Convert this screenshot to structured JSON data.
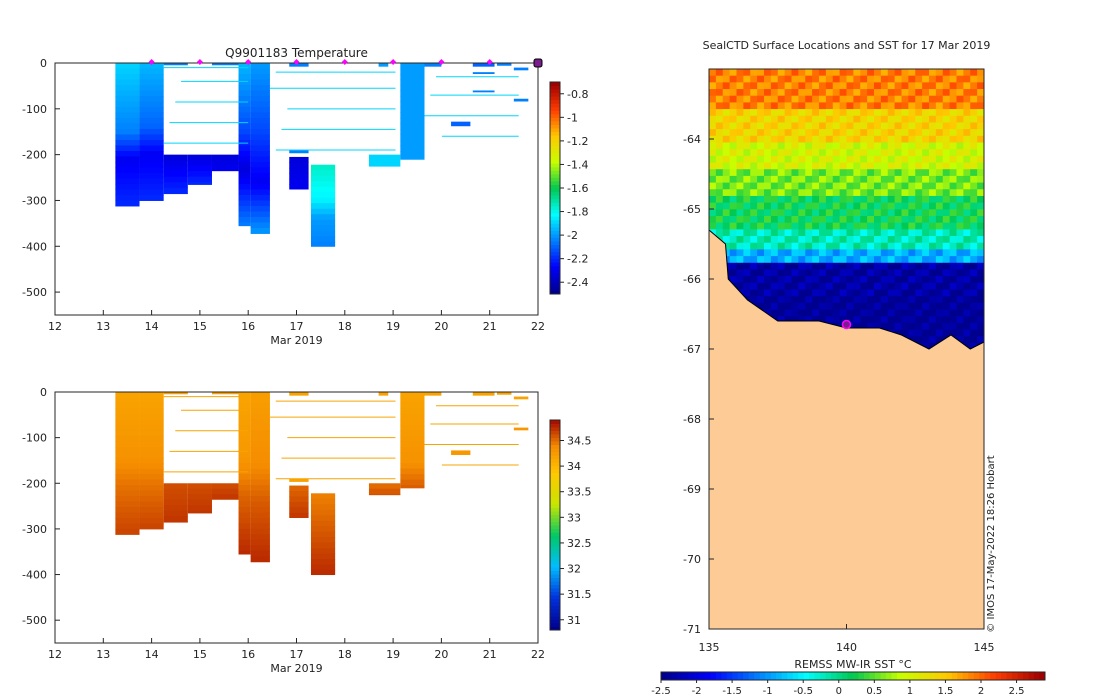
{
  "colors": {
    "temp_low": "#00008f",
    "temp_high": "#9f0000",
    "land": "#fccb96",
    "marker": "#ff00ff",
    "marker_profile": "#7a1d8c"
  },
  "chart_data": [
    {
      "type": "heatmap",
      "id": "temperature-section",
      "title": "Q9901183  Temperature",
      "xlabel": "Mar 2019",
      "ylabel": "",
      "xlim": [
        12,
        22
      ],
      "ylim": [
        -550,
        0
      ],
      "xticks": [
        12,
        13,
        14,
        15,
        16,
        17,
        18,
        19,
        20,
        21,
        22
      ],
      "yticks": [
        0,
        -100,
        -200,
        -300,
        -400,
        -500
      ],
      "colorbar": {
        "ticks": [
          -0.8,
          -1,
          -1.2,
          -1.4,
          -1.6,
          -1.8,
          -2,
          -2.2,
          -2.4
        ],
        "range": [
          -2.5,
          -0.7
        ]
      },
      "surface_markers": [
        14,
        15,
        16,
        17,
        18,
        19,
        20,
        21
      ],
      "last_profile_marker": 22,
      "profiles": [
        {
          "x0": 13.25,
          "x1": 13.75,
          "zmax": 312,
          "grad": [
            [
              0,
              -1.9
            ],
            [
              150,
              -2.05
            ],
            [
              210,
              -2.3
            ],
            [
              312,
              -2.2
            ]
          ]
        },
        {
          "x0": 13.75,
          "x1": 14.25,
          "zmax": 300,
          "grad": [
            [
              0,
              -1.95
            ],
            [
              140,
              -2.1
            ],
            [
              200,
              -2.3
            ],
            [
              300,
              -2.2
            ]
          ]
        },
        {
          "x0": 14.25,
          "x1": 14.75,
          "zmax": 285,
          "grad": [
            [
              200,
              -2.35
            ],
            [
              285,
              -2.2
            ]
          ]
        },
        {
          "x0": 14.75,
          "x1": 15.25,
          "zmax": 265,
          "grad": [
            [
              200,
              -2.35
            ],
            [
              265,
              -2.2
            ]
          ]
        },
        {
          "x0": 15.25,
          "x1": 15.8,
          "zmax": 235,
          "grad": [
            [
              200,
              -2.35
            ],
            [
              235,
              -2.3
            ]
          ]
        },
        {
          "x0": 15.8,
          "x1": 16.05,
          "zmax": 355,
          "grad": [
            [
              0,
              -1.95
            ],
            [
              150,
              -2.15
            ],
            [
              230,
              -2.35
            ],
            [
              355,
              -2.05
            ]
          ]
        },
        {
          "x0": 16.05,
          "x1": 16.45,
          "zmax": 372,
          "grad": [
            [
              0,
              -2.0
            ],
            [
              150,
              -2.15
            ],
            [
              260,
              -2.3
            ],
            [
              372,
              -2.0
            ]
          ]
        },
        {
          "x0": 16.85,
          "x1": 17.25,
          "zmax": 275,
          "grad": [
            [
              205,
              -2.35
            ],
            [
              275,
              -2.3
            ]
          ]
        },
        {
          "x0": 17.3,
          "x1": 17.8,
          "zmax": 400,
          "grad": [
            [
              222,
              -1.75
            ],
            [
              300,
              -1.85
            ],
            [
              340,
              -2.0
            ],
            [
              400,
              -2.05
            ]
          ]
        },
        {
          "x0": 18.5,
          "x1": 19.15,
          "zmax": 225,
          "grad": [
            [
              200,
              -1.9
            ],
            [
              225,
              -1.9
            ]
          ]
        },
        {
          "x0": 19.15,
          "x1": 19.65,
          "zmax": 210,
          "grad": [
            [
              0,
              -2.0
            ],
            [
              210,
              -2.0
            ]
          ]
        }
      ],
      "segments": [
        {
          "x0": 14.25,
          "x1": 14.75,
          "z0": 0,
          "z1": 5,
          "v": -2.05
        },
        {
          "x0": 15.25,
          "x1": 15.8,
          "z0": 0,
          "z1": 5,
          "v": -2.05
        },
        {
          "x0": 16.85,
          "x1": 17.25,
          "z0": 0,
          "z1": 8,
          "v": -2.05
        },
        {
          "x0": 16.85,
          "x1": 17.25,
          "z0": 190,
          "z1": 197,
          "v": -2.05
        },
        {
          "x0": 18.7,
          "x1": 18.9,
          "z0": 0,
          "z1": 8,
          "v": -2.0
        },
        {
          "x0": 19.65,
          "x1": 20.0,
          "z0": 0,
          "z1": 8,
          "v": -2.05
        },
        {
          "x0": 20.2,
          "x1": 20.6,
          "z0": 128,
          "z1": 138,
          "v": -2.1
        },
        {
          "x0": 20.65,
          "x1": 21.1,
          "z0": 0,
          "z1": 8,
          "v": -2.1
        },
        {
          "x0": 20.65,
          "x1": 21.1,
          "z0": 20,
          "z1": 24,
          "v": -2.05
        },
        {
          "x0": 20.65,
          "x1": 21.1,
          "z0": 60,
          "z1": 64,
          "v": -2.05
        },
        {
          "x0": 21.15,
          "x1": 21.45,
          "z0": 0,
          "z1": 6,
          "v": -2.05
        },
        {
          "x0": 21.5,
          "x1": 21.8,
          "z0": 10,
          "z1": 16,
          "v": -2.05
        },
        {
          "x0": 21.5,
          "x1": 21.8,
          "z0": 78,
          "z1": 84,
          "v": -2.05
        }
      ]
    },
    {
      "type": "heatmap",
      "id": "salinity-section",
      "title": "",
      "xlabel": "Mar 2019",
      "ylabel": "",
      "xlim": [
        12,
        22
      ],
      "ylim": [
        -550,
        0
      ],
      "xticks": [
        12,
        13,
        14,
        15,
        16,
        17,
        18,
        19,
        20,
        21,
        22
      ],
      "yticks": [
        0,
        -100,
        -200,
        -300,
        -400,
        -500
      ],
      "colorbar": {
        "ticks": [
          34.5,
          34,
          33.5,
          33,
          32.5,
          32,
          31.5,
          31
        ],
        "range": [
          30.8,
          34.9
        ]
      },
      "profiles": [
        {
          "x0": 13.25,
          "x1": 13.75,
          "zmax": 312,
          "grad": [
            [
              0,
              34.2
            ],
            [
              140,
              34.35
            ],
            [
              200,
              34.5
            ],
            [
              312,
              34.7
            ]
          ]
        },
        {
          "x0": 13.75,
          "x1": 14.25,
          "zmax": 300,
          "grad": [
            [
              0,
              34.2
            ],
            [
              140,
              34.35
            ],
            [
              200,
              34.5
            ],
            [
              300,
              34.7
            ]
          ]
        },
        {
          "x0": 14.25,
          "x1": 14.75,
          "zmax": 285,
          "grad": [
            [
              200,
              34.65
            ],
            [
              285,
              34.75
            ]
          ]
        },
        {
          "x0": 14.75,
          "x1": 15.25,
          "zmax": 265,
          "grad": [
            [
              200,
              34.65
            ],
            [
              265,
              34.75
            ]
          ]
        },
        {
          "x0": 15.25,
          "x1": 15.8,
          "zmax": 235,
          "grad": [
            [
              200,
              34.65
            ],
            [
              235,
              34.75
            ]
          ]
        },
        {
          "x0": 15.8,
          "x1": 16.05,
          "zmax": 355,
          "grad": [
            [
              0,
              34.2
            ],
            [
              140,
              34.3
            ],
            [
              220,
              34.55
            ],
            [
              355,
              34.8
            ]
          ]
        },
        {
          "x0": 16.05,
          "x1": 16.45,
          "zmax": 372,
          "grad": [
            [
              0,
              34.25
            ],
            [
              160,
              34.4
            ],
            [
              240,
              34.6
            ],
            [
              372,
              34.8
            ]
          ]
        },
        {
          "x0": 16.85,
          "x1": 17.25,
          "zmax": 275,
          "grad": [
            [
              205,
              34.55
            ],
            [
              275,
              34.75
            ]
          ]
        },
        {
          "x0": 17.3,
          "x1": 17.8,
          "zmax": 400,
          "grad": [
            [
              222,
              34.45
            ],
            [
              300,
              34.6
            ],
            [
              400,
              34.8
            ]
          ]
        },
        {
          "x0": 18.5,
          "x1": 19.15,
          "zmax": 225,
          "grad": [
            [
              200,
              34.5
            ],
            [
              225,
              34.65
            ]
          ]
        },
        {
          "x0": 19.15,
          "x1": 19.65,
          "zmax": 210,
          "grad": [
            [
              0,
              34.2
            ],
            [
              150,
              34.35
            ],
            [
              210,
              34.6
            ]
          ]
        }
      ],
      "segments": [
        {
          "x0": 14.25,
          "x1": 14.75,
          "z0": 0,
          "z1": 5,
          "v": 34.25
        },
        {
          "x0": 15.25,
          "x1": 15.8,
          "z0": 0,
          "z1": 5,
          "v": 34.25
        },
        {
          "x0": 16.85,
          "x1": 17.25,
          "z0": 0,
          "z1": 8,
          "v": 34.2
        },
        {
          "x0": 16.85,
          "x1": 17.25,
          "z0": 190,
          "z1": 197,
          "v": 34.2
        },
        {
          "x0": 18.7,
          "x1": 18.9,
          "z0": 0,
          "z1": 8,
          "v": 34.2
        },
        {
          "x0": 19.65,
          "x1": 20.0,
          "z0": 0,
          "z1": 8,
          "v": 34.2
        },
        {
          "x0": 20.2,
          "x1": 20.6,
          "z0": 128,
          "z1": 138,
          "v": 34.3
        },
        {
          "x0": 20.65,
          "x1": 21.1,
          "z0": 0,
          "z1": 8,
          "v": 34.2
        },
        {
          "x0": 21.15,
          "x1": 21.45,
          "z0": 0,
          "z1": 6,
          "v": 34.2
        },
        {
          "x0": 21.5,
          "x1": 21.8,
          "z0": 10,
          "z1": 16,
          "v": 34.2
        },
        {
          "x0": 21.5,
          "x1": 21.8,
          "z0": 78,
          "z1": 84,
          "v": 34.3
        }
      ]
    },
    {
      "type": "heatmap",
      "id": "sst-map",
      "title": "SealCTD Surface Locations and SST for 17 Mar 2019",
      "xlabel": "",
      "ylabel": "",
      "xlim": [
        135,
        145
      ],
      "ylim": [
        -71,
        -63
      ],
      "xticks": [
        135,
        140,
        145
      ],
      "yticks": [
        -64,
        -65,
        -66,
        -67,
        -68,
        -69,
        -70,
        -71
      ],
      "colorbar_label": "REMSS MW-IR SST °C",
      "colorbar": {
        "ticks": [
          -2.5,
          -2,
          -1.5,
          -1,
          -0.5,
          0,
          0.5,
          1,
          1.5,
          2,
          2.5
        ],
        "range": [
          -2.5,
          2.9
        ]
      },
      "sst_bands": [
        {
          "lat": -63.0,
          "value": 1.9
        },
        {
          "lat": -63.5,
          "value": 1.4
        },
        {
          "lat": -64.0,
          "value": 1.0
        },
        {
          "lat": -64.4,
          "value": 0.6
        },
        {
          "lat": -64.8,
          "value": 0.2
        },
        {
          "lat": -65.2,
          "value": -0.2
        },
        {
          "lat": -65.5,
          "value": -0.9
        },
        {
          "lat": -65.75,
          "value": -2.4
        },
        {
          "lat": -66.2,
          "value": -2.5
        }
      ],
      "coastline": [
        [
          135,
          -65.3
        ],
        [
          135.6,
          -65.5
        ],
        [
          135.7,
          -66.0
        ],
        [
          136.4,
          -66.3
        ],
        [
          137.5,
          -66.6
        ],
        [
          139.0,
          -66.6
        ],
        [
          140.0,
          -66.7
        ],
        [
          141.2,
          -66.7
        ],
        [
          142.0,
          -66.8
        ],
        [
          143.0,
          -67.0
        ],
        [
          143.8,
          -66.8
        ],
        [
          144.5,
          -67.0
        ],
        [
          145,
          -66.9
        ]
      ],
      "seal_location": {
        "lon": 140.0,
        "lat": -66.65
      },
      "credit": "© IMOS 17-May-2022 18:26 Hobart"
    }
  ]
}
